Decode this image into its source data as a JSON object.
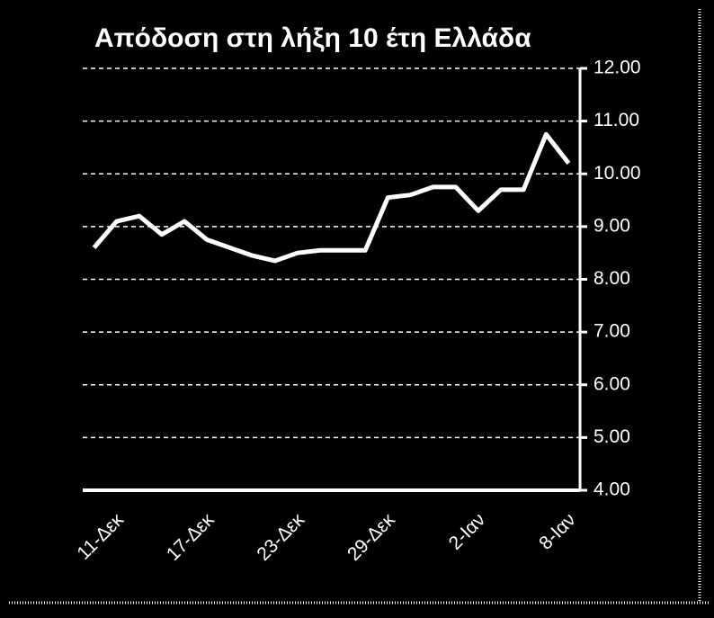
{
  "chart_data": {
    "type": "line",
    "title": "Απόδοση στη λήξη 10  έτη Ελλάδα",
    "categories": [
      "11-Δεκ",
      null,
      null,
      null,
      "17-Δεκ",
      null,
      null,
      null,
      "23-Δεκ",
      null,
      null,
      null,
      "29-Δεκ",
      null,
      null,
      null,
      "2-Ιαν",
      null,
      null,
      null,
      "8-Ιαν",
      null
    ],
    "series": [
      {
        "color": "#ffffff",
        "values": [
          8.6,
          9.1,
          9.2,
          8.85,
          9.1,
          8.75,
          8.6,
          8.45,
          8.35,
          8.5,
          8.55,
          8.55,
          8.55,
          9.55,
          9.6,
          9.75,
          9.75,
          9.3,
          9.7,
          9.7,
          10.75,
          10.2
        ]
      }
    ],
    "ylim": [
      4,
      12
    ],
    "yticks": [
      {
        "value": 4,
        "label": "4.00"
      },
      {
        "value": 5,
        "label": "5.00"
      },
      {
        "value": 6,
        "label": "6.00"
      },
      {
        "value": 7,
        "label": "7.00"
      },
      {
        "value": 8,
        "label": "8.00"
      },
      {
        "value": 9,
        "label": "9.00"
      },
      {
        "value": 10,
        "label": "10.00"
      },
      {
        "value": 11,
        "label": "11.00"
      },
      {
        "value": 12,
        "label": "12.00"
      }
    ],
    "grid": true
  }
}
